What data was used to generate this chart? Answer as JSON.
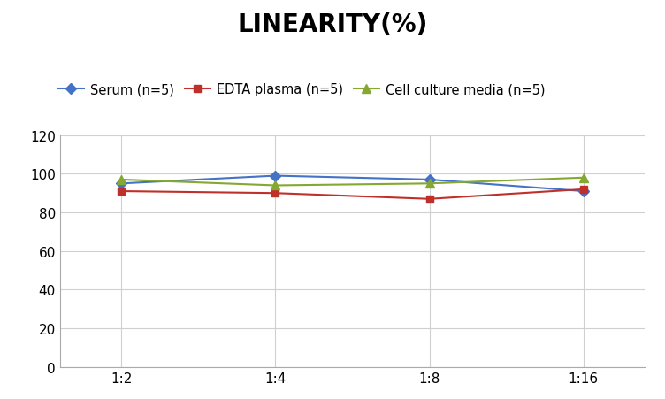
{
  "title": "LINEARITY(%)",
  "x_labels": [
    "1:2",
    "1:4",
    "1:8",
    "1:16"
  ],
  "x_positions": [
    0,
    1,
    2,
    3
  ],
  "series": [
    {
      "label": "Serum (n=5)",
      "values": [
        95,
        99,
        97,
        91
      ],
      "color": "#4472C4",
      "marker": "D",
      "linewidth": 1.5,
      "markersize": 6
    },
    {
      "label": "EDTA plasma (n=5)",
      "values": [
        91,
        90,
        87,
        92
      ],
      "color": "#C0302A",
      "marker": "s",
      "linewidth": 1.5,
      "markersize": 6
    },
    {
      "label": "Cell culture media (n=5)",
      "values": [
        97,
        94,
        95,
        98
      ],
      "color": "#84A832",
      "marker": "^",
      "linewidth": 1.5,
      "markersize": 7
    }
  ],
  "ylim": [
    0,
    120
  ],
  "yticks": [
    0,
    20,
    40,
    60,
    80,
    100,
    120
  ],
  "background_color": "#ffffff",
  "grid_color": "#d0d0d0",
  "title_fontsize": 20,
  "legend_fontsize": 10.5,
  "tick_fontsize": 11
}
